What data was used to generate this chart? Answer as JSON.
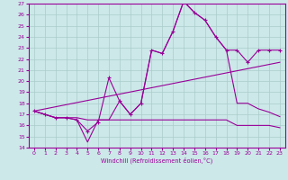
{
  "xlabel": "Windchill (Refroidissement éolien,°C)",
  "xlim": [
    -0.5,
    23.5
  ],
  "ylim": [
    14,
    27
  ],
  "yticks": [
    14,
    15,
    16,
    17,
    18,
    19,
    20,
    21,
    22,
    23,
    24,
    25,
    26,
    27
  ],
  "xticks": [
    0,
    1,
    2,
    3,
    4,
    5,
    6,
    7,
    8,
    9,
    10,
    11,
    12,
    13,
    14,
    15,
    16,
    17,
    18,
    19,
    20,
    21,
    22,
    23
  ],
  "bg_color": "#cce8e8",
  "line_color": "#990099",
  "grid_color": "#aacccc",
  "lines": [
    {
      "x": [
        0,
        1,
        2,
        3,
        4,
        5,
        6,
        7,
        8,
        9,
        10,
        11,
        12,
        13,
        14,
        15,
        16,
        17,
        18,
        19,
        20,
        21,
        22,
        23
      ],
      "y": [
        17.3,
        17.0,
        16.7,
        16.7,
        16.5,
        15.5,
        16.3,
        20.3,
        18.2,
        17.0,
        18.0,
        22.8,
        22.5,
        24.5,
        27.2,
        26.2,
        25.5,
        24.0,
        22.8,
        22.8,
        21.7,
        22.8,
        22.8,
        22.8
      ],
      "marker": true
    },
    {
      "x": [
        0,
        1,
        2,
        3,
        4,
        5,
        6,
        7,
        8,
        9,
        10,
        11,
        12,
        13,
        14,
        15,
        16,
        17,
        18,
        19,
        20,
        21,
        22,
        23
      ],
      "y": [
        17.3,
        17.0,
        16.7,
        16.7,
        16.5,
        14.5,
        16.5,
        16.5,
        18.2,
        17.0,
        18.0,
        22.8,
        22.5,
        24.5,
        27.2,
        26.2,
        25.5,
        24.0,
        22.8,
        18.0,
        18.0,
        17.5,
        17.2,
        16.8
      ],
      "marker": false
    },
    {
      "x": [
        0,
        23
      ],
      "y": [
        17.3,
        21.7
      ],
      "marker": false
    },
    {
      "x": [
        0,
        1,
        2,
        3,
        4,
        5,
        6,
        7,
        8,
        9,
        10,
        11,
        12,
        13,
        14,
        15,
        16,
        17,
        18,
        19,
        20,
        21,
        22,
        23
      ],
      "y": [
        17.3,
        17.0,
        16.7,
        16.7,
        16.7,
        16.5,
        16.5,
        16.5,
        16.5,
        16.5,
        16.5,
        16.5,
        16.5,
        16.5,
        16.5,
        16.5,
        16.5,
        16.5,
        16.5,
        16.0,
        16.0,
        16.0,
        16.0,
        15.8
      ],
      "marker": false
    }
  ]
}
